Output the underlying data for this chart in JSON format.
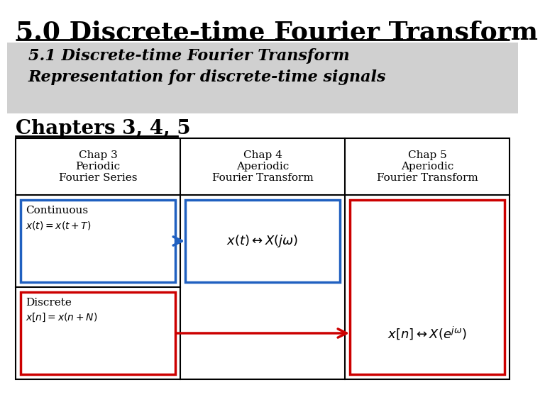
{
  "title": "5.0 Discrete-time Fourier Transform",
  "subtitle_line1": "5.1 Discrete-time Fourier Transform",
  "subtitle_line2": "Representation for discrete-time signals",
  "section_title": "Chapters 3, 4, 5",
  "col_headers": [
    "Chap 3\nPeriodic\nFourier Series",
    "Chap 4\nAperiodic\nFourier Transform",
    "Chap 5\nAperiodic\nFourier Transform"
  ],
  "continuous_label": "Continuous",
  "continuous_eq": "$x(t) = x(t+T)$",
  "discrete_label": "Discrete",
  "discrete_eq": "$x[n] = x(n+N)$",
  "chap4_continuous_eq": "$x(t) \\leftrightarrow X(j\\omega)$",
  "chap5_discrete_eq": "$x[n] \\leftrightarrow X(e^{j\\omega})$",
  "bg_color": "#ffffff",
  "subtitle_bg": "#d0d0d0",
  "blue_color": "#2060c0",
  "red_color": "#cc0000",
  "black_color": "#000000",
  "table_line_color": "#000000",
  "title_fontsize": 26,
  "subtitle_fontsize": 16,
  "section_fontsize": 20,
  "header_fontsize": 11,
  "body_fontsize": 11,
  "eq_fontsize": 13
}
